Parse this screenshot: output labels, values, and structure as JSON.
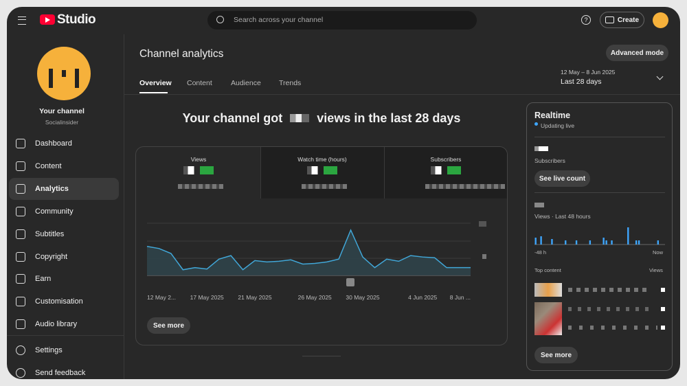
{
  "header": {
    "logo": "Studio",
    "search_placeholder": "Search across your channel",
    "create": "Create"
  },
  "sidebar": {
    "channel_title": "Your channel",
    "channel_name": "Socialinsider",
    "nav": [
      "Dashboard",
      "Content",
      "Analytics",
      "Community",
      "Subtitles",
      "Copyright",
      "Earn",
      "Customisation",
      "Audio library"
    ],
    "bottom": [
      "Settings",
      "Send feedback"
    ]
  },
  "main": {
    "title": "Channel analytics",
    "advanced": "Advanced mode",
    "tabs": [
      "Overview",
      "Content",
      "Audience",
      "Trends"
    ],
    "date_range": "12 May – 8 Jun 2025",
    "period": "Last 28 days",
    "headline_start": "Your channel got",
    "headline_end": "views in the last 28 days",
    "metrics": [
      "Views",
      "Watch time (hours)",
      "Subscribers"
    ],
    "see_more": "See more"
  },
  "views_chart": {
    "type": "line",
    "categories": [
      "12 May 2...",
      null,
      null,
      null,
      null,
      "17 May 2025",
      null,
      null,
      null,
      "21 May 2025",
      null,
      null,
      null,
      null,
      "26 May 2025",
      null,
      null,
      null,
      "30 May 2025",
      null,
      null,
      null,
      null,
      "4 Jun 2025",
      null,
      null,
      null,
      "8 Jun ..."
    ],
    "values": [
      41,
      38,
      31,
      8,
      11,
      9,
      23,
      28,
      8,
      21,
      19,
      20,
      22,
      16,
      17,
      19,
      23,
      64,
      26,
      11,
      23,
      20,
      28,
      26,
      25,
      11,
      11,
      11
    ],
    "color": "#41a7d8"
  },
  "realtime": {
    "title": "Realtime",
    "status": "Updating live",
    "subscribers": "Subscribers",
    "live_count": "See live count",
    "views_label": "Views · Last 48 hours",
    "start": "-48 h",
    "end": "Now",
    "top_content": "Top content",
    "views": "Views",
    "see_more": "See more",
    "chart": {
      "type": "bar",
      "values": [
        10,
        0,
        12,
        0,
        0,
        0,
        8,
        0,
        0,
        0,
        0,
        6,
        0,
        0,
        0,
        6,
        0,
        0,
        0,
        0,
        6,
        0,
        0,
        0,
        0,
        10,
        6,
        0,
        6,
        0,
        0,
        0,
        0,
        0,
        25,
        0,
        0,
        6,
        6,
        0,
        0,
        0,
        0,
        0,
        0,
        6,
        0,
        0
      ],
      "color": "#3ea6ff"
    }
  }
}
